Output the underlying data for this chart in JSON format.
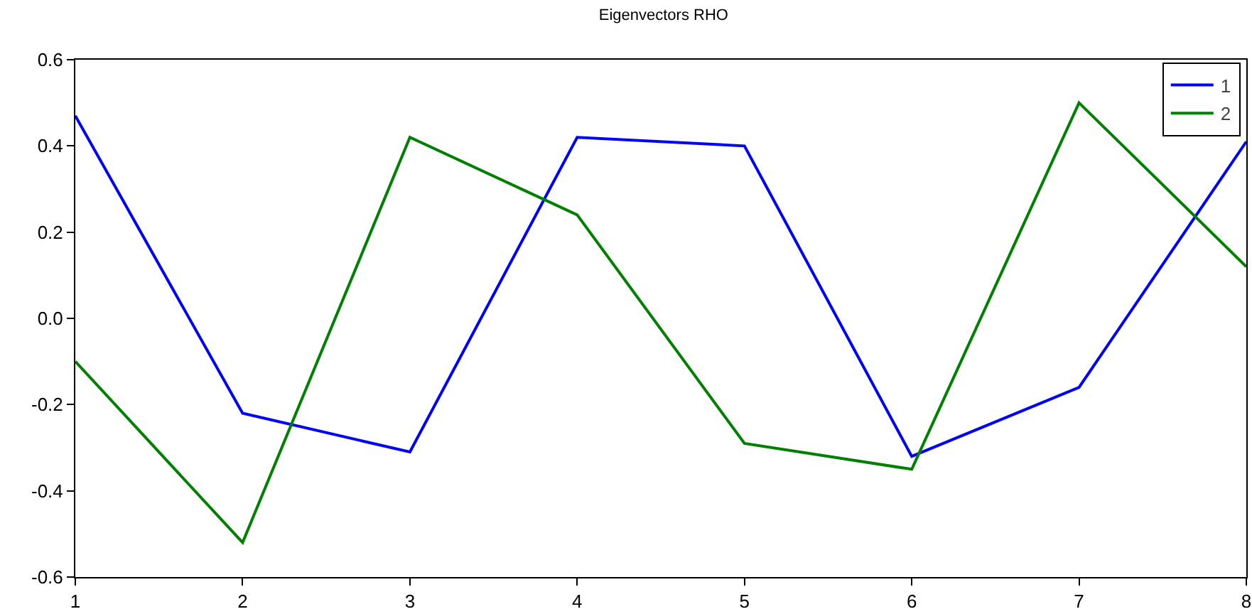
{
  "chart_data": {
    "type": "line",
    "title": "Eigenvectors RHO",
    "x": [
      1,
      2,
      3,
      4,
      5,
      6,
      7,
      8
    ],
    "series": [
      {
        "name": "1",
        "color": "#0000ff",
        "values": [
          0.47,
          -0.22,
          -0.31,
          0.42,
          0.4,
          -0.32,
          -0.16,
          0.41
        ]
      },
      {
        "name": "2",
        "color": "#008000",
        "values": [
          -0.1,
          -0.52,
          0.42,
          0.24,
          -0.29,
          -0.35,
          0.5,
          0.12
        ]
      }
    ],
    "xlim": [
      1,
      8
    ],
    "xticks": [
      1,
      2,
      3,
      4,
      5,
      6,
      7,
      8
    ],
    "ylim": [
      -0.6,
      0.6
    ],
    "yticks": [
      {
        "value": -0.6,
        "label": "-0.6"
      },
      {
        "value": -0.4,
        "label": "-0.4"
      },
      {
        "value": -0.2,
        "label": "-0.2"
      },
      {
        "value": 0,
        "label": "0.0"
      },
      {
        "value": 0.2,
        "label": "0.2"
      },
      {
        "value": 0.4,
        "label": "0.4"
      },
      {
        "value": 0.6,
        "label": "0.6"
      }
    ],
    "grid": false,
    "legend": "top right",
    "marker": "none",
    "line_style": "solid"
  }
}
